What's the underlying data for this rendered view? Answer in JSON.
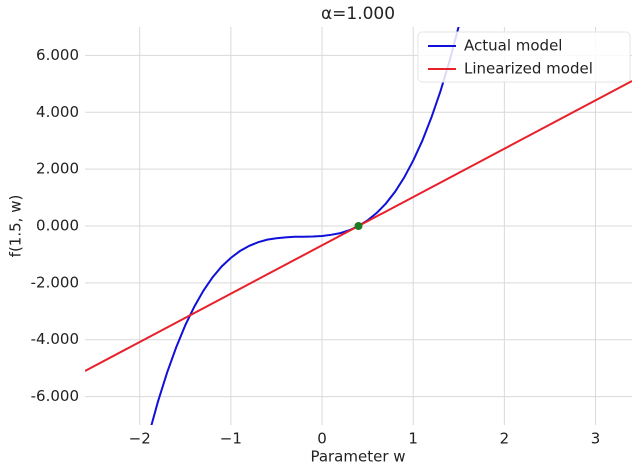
{
  "chart_data": {
    "type": "line",
    "title": "α=1.000",
    "xlabel": "Parameter w",
    "ylabel": "f(1.5, w)",
    "xlim": [
      -2.6,
      3.4
    ],
    "ylim": [
      -7,
      7
    ],
    "xticks": [
      {
        "value": -2,
        "label": "−2"
      },
      {
        "value": -1,
        "label": "−1"
      },
      0,
      1,
      2,
      3
    ],
    "yticks": [
      {
        "value": -6,
        "label": "-6.000"
      },
      {
        "value": -4,
        "label": "-4.000"
      },
      {
        "value": -2,
        "label": "-2.000"
      },
      {
        "value": 0,
        "label": "0.000"
      },
      {
        "value": 2,
        "label": "2.000"
      },
      {
        "value": 4,
        "label": "4.000"
      },
      {
        "value": 6,
        "label": "6.000"
      }
    ],
    "grid": true,
    "legend": "upper right",
    "series": [
      {
        "name": "Actual model",
        "color": "#1010d8",
        "x": [
          -1.9,
          -1.8,
          -1.7,
          -1.6,
          -1.5,
          -1.4,
          -1.3,
          -1.2,
          -1.1,
          -1.0,
          -0.9,
          -0.8,
          -0.7,
          -0.6,
          -0.5,
          -0.4,
          -0.3,
          -0.2,
          -0.1,
          0,
          0.1,
          0.2,
          0.3,
          0.4,
          0.5,
          0.6,
          0.7,
          0.8,
          0.9,
          1.0,
          1.1,
          1.2,
          1.3,
          1.4,
          1.5
        ],
        "values": [
          -7.34,
          -6.18,
          -5.16,
          -4.27,
          -3.49,
          -2.83,
          -2.27,
          -1.8,
          -1.42,
          -1.12,
          -0.88,
          -0.7,
          -0.57,
          -0.48,
          -0.43,
          -0.4,
          -0.38,
          -0.38,
          -0.37,
          -0.35,
          -0.31,
          -0.25,
          -0.15,
          0,
          0.2,
          0.46,
          0.79,
          1.2,
          1.7,
          2.3,
          3.0,
          3.82,
          4.75,
          5.82,
          7.03
        ]
      },
      {
        "name": "Linearized model",
        "color": "#e8202a",
        "x": [
          -2.6,
          3.4
        ],
        "values": [
          -5.1,
          5.1
        ]
      }
    ],
    "marker": {
      "x": 0.4,
      "y": 0,
      "color": "#1e7a1e"
    }
  }
}
